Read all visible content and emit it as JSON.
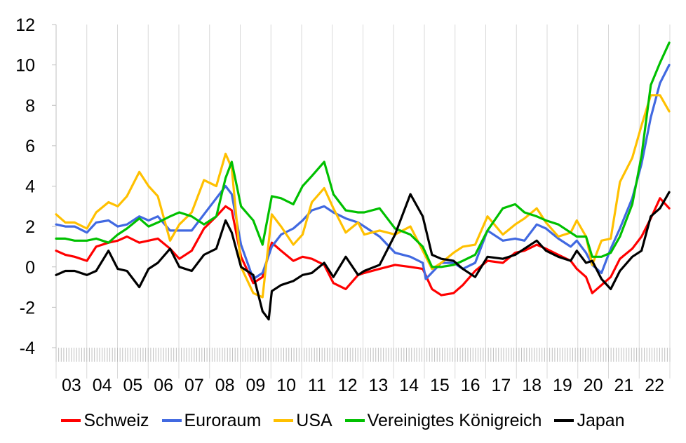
{
  "chart_data": {
    "type": "line",
    "title": "",
    "xlabel": "",
    "ylabel": "",
    "ylim": [
      -4,
      12
    ],
    "xlim": [
      2003.0,
      2022.92
    ],
    "yticks": [
      -4,
      -2,
      0,
      2,
      4,
      6,
      8,
      10,
      12
    ],
    "xtick_labels": [
      "03",
      "04",
      "05",
      "06",
      "07",
      "08",
      "09",
      "10",
      "11",
      "12",
      "13",
      "14",
      "15",
      "16",
      "17",
      "18",
      "19",
      "20",
      "21",
      "22"
    ],
    "grid": "vertical",
    "legend_position": "bottom",
    "series": [
      {
        "name": "Schweiz",
        "color": "#ff0000",
        "points": [
          [
            2003.0,
            0.8
          ],
          [
            2003.3,
            0.6
          ],
          [
            2003.6,
            0.5
          ],
          [
            2004.0,
            0.3
          ],
          [
            2004.3,
            1.0
          ],
          [
            2004.7,
            1.2
          ],
          [
            2005.0,
            1.3
          ],
          [
            2005.3,
            1.5
          ],
          [
            2005.7,
            1.2
          ],
          [
            2006.0,
            1.3
          ],
          [
            2006.3,
            1.4
          ],
          [
            2006.7,
            0.9
          ],
          [
            2007.0,
            0.4
          ],
          [
            2007.4,
            0.8
          ],
          [
            2007.8,
            1.9
          ],
          [
            2008.2,
            2.5
          ],
          [
            2008.5,
            3.0
          ],
          [
            2008.7,
            2.8
          ],
          [
            2009.0,
            0.5
          ],
          [
            2009.4,
            -0.8
          ],
          [
            2009.7,
            -0.5
          ],
          [
            2010.0,
            1.2
          ],
          [
            2010.3,
            0.8
          ],
          [
            2010.7,
            0.3
          ],
          [
            2011.0,
            0.5
          ],
          [
            2011.3,
            0.4
          ],
          [
            2011.7,
            0.1
          ],
          [
            2012.0,
            -0.8
          ],
          [
            2012.4,
            -1.1
          ],
          [
            2012.8,
            -0.4
          ],
          [
            2013.0,
            -0.3
          ],
          [
            2013.5,
            -0.1
          ],
          [
            2014.0,
            0.1
          ],
          [
            2014.5,
            0.0
          ],
          [
            2014.9,
            -0.1
          ],
          [
            2015.2,
            -1.1
          ],
          [
            2015.5,
            -1.4
          ],
          [
            2015.9,
            -1.3
          ],
          [
            2016.2,
            -0.9
          ],
          [
            2016.6,
            -0.2
          ],
          [
            2017.0,
            0.3
          ],
          [
            2017.5,
            0.2
          ],
          [
            2017.9,
            0.7
          ],
          [
            2018.2,
            0.8
          ],
          [
            2018.6,
            1.1
          ],
          [
            2018.9,
            0.9
          ],
          [
            2019.3,
            0.6
          ],
          [
            2019.7,
            0.3
          ],
          [
            2019.9,
            -0.1
          ],
          [
            2020.2,
            -0.5
          ],
          [
            2020.4,
            -1.3
          ],
          [
            2020.7,
            -0.9
          ],
          [
            2021.0,
            -0.5
          ],
          [
            2021.3,
            0.4
          ],
          [
            2021.7,
            0.9
          ],
          [
            2022.0,
            1.5
          ],
          [
            2022.3,
            2.4
          ],
          [
            2022.6,
            3.4
          ],
          [
            2022.9,
            2.9
          ]
        ]
      },
      {
        "name": "Euroraum",
        "color": "#4169e1",
        "points": [
          [
            2003.0,
            2.1
          ],
          [
            2003.3,
            2.0
          ],
          [
            2003.6,
            2.0
          ],
          [
            2004.0,
            1.7
          ],
          [
            2004.3,
            2.2
          ],
          [
            2004.7,
            2.3
          ],
          [
            2005.0,
            2.0
          ],
          [
            2005.3,
            2.1
          ],
          [
            2005.7,
            2.5
          ],
          [
            2006.0,
            2.3
          ],
          [
            2006.3,
            2.5
          ],
          [
            2006.7,
            1.8
          ],
          [
            2007.0,
            1.8
          ],
          [
            2007.4,
            1.8
          ],
          [
            2007.8,
            2.6
          ],
          [
            2008.2,
            3.4
          ],
          [
            2008.5,
            4.0
          ],
          [
            2008.7,
            3.6
          ],
          [
            2009.0,
            1.1
          ],
          [
            2009.4,
            -0.6
          ],
          [
            2009.7,
            -0.3
          ],
          [
            2010.0,
            1.0
          ],
          [
            2010.3,
            1.6
          ],
          [
            2010.7,
            1.9
          ],
          [
            2011.0,
            2.3
          ],
          [
            2011.3,
            2.8
          ],
          [
            2011.7,
            3.0
          ],
          [
            2012.0,
            2.7
          ],
          [
            2012.4,
            2.4
          ],
          [
            2012.8,
            2.2
          ],
          [
            2013.0,
            2.0
          ],
          [
            2013.5,
            1.5
          ],
          [
            2014.0,
            0.7
          ],
          [
            2014.5,
            0.5
          ],
          [
            2014.9,
            0.2
          ],
          [
            2015.0,
            -0.6
          ],
          [
            2015.5,
            0.2
          ],
          [
            2015.9,
            0.2
          ],
          [
            2016.2,
            -0.1
          ],
          [
            2016.6,
            0.2
          ],
          [
            2017.0,
            1.8
          ],
          [
            2017.5,
            1.3
          ],
          [
            2017.9,
            1.4
          ],
          [
            2018.2,
            1.3
          ],
          [
            2018.6,
            2.1
          ],
          [
            2018.9,
            1.9
          ],
          [
            2019.3,
            1.4
          ],
          [
            2019.7,
            1.0
          ],
          [
            2019.9,
            1.3
          ],
          [
            2020.2,
            0.7
          ],
          [
            2020.4,
            0.1
          ],
          [
            2020.7,
            -0.3
          ],
          [
            2021.0,
            0.9
          ],
          [
            2021.3,
            1.9
          ],
          [
            2021.7,
            3.4
          ],
          [
            2022.0,
            5.1
          ],
          [
            2022.3,
            7.4
          ],
          [
            2022.6,
            9.1
          ],
          [
            2022.9,
            10.0
          ]
        ]
      },
      {
        "name": "USA",
        "color": "#ffc000",
        "points": [
          [
            2003.0,
            2.6
          ],
          [
            2003.3,
            2.2
          ],
          [
            2003.6,
            2.2
          ],
          [
            2004.0,
            1.9
          ],
          [
            2004.3,
            2.7
          ],
          [
            2004.7,
            3.2
          ],
          [
            2005.0,
            3.0
          ],
          [
            2005.3,
            3.5
          ],
          [
            2005.7,
            4.7
          ],
          [
            2006.0,
            4.0
          ],
          [
            2006.3,
            3.5
          ],
          [
            2006.7,
            1.3
          ],
          [
            2007.0,
            2.1
          ],
          [
            2007.4,
            2.7
          ],
          [
            2007.8,
            4.3
          ],
          [
            2008.2,
            4.0
          ],
          [
            2008.5,
            5.6
          ],
          [
            2008.7,
            4.9
          ],
          [
            2009.0,
            0.0
          ],
          [
            2009.4,
            -1.3
          ],
          [
            2009.7,
            -1.5
          ],
          [
            2010.0,
            2.6
          ],
          [
            2010.3,
            2.0
          ],
          [
            2010.7,
            1.1
          ],
          [
            2011.0,
            1.6
          ],
          [
            2011.3,
            3.2
          ],
          [
            2011.7,
            3.9
          ],
          [
            2012.0,
            2.9
          ],
          [
            2012.4,
            1.7
          ],
          [
            2012.8,
            2.2
          ],
          [
            2013.0,
            1.6
          ],
          [
            2013.5,
            1.8
          ],
          [
            2014.0,
            1.6
          ],
          [
            2014.5,
            2.0
          ],
          [
            2014.9,
            0.8
          ],
          [
            2015.2,
            -0.1
          ],
          [
            2015.5,
            0.2
          ],
          [
            2015.9,
            0.7
          ],
          [
            2016.2,
            1.0
          ],
          [
            2016.6,
            1.1
          ],
          [
            2017.0,
            2.5
          ],
          [
            2017.5,
            1.6
          ],
          [
            2017.9,
            2.1
          ],
          [
            2018.2,
            2.4
          ],
          [
            2018.6,
            2.9
          ],
          [
            2018.9,
            2.2
          ],
          [
            2019.3,
            1.5
          ],
          [
            2019.7,
            1.7
          ],
          [
            2019.9,
            2.3
          ],
          [
            2020.2,
            1.5
          ],
          [
            2020.4,
            0.1
          ],
          [
            2020.7,
            1.3
          ],
          [
            2021.0,
            1.4
          ],
          [
            2021.3,
            4.2
          ],
          [
            2021.7,
            5.4
          ],
          [
            2022.0,
            7.0
          ],
          [
            2022.3,
            8.5
          ],
          [
            2022.6,
            8.5
          ],
          [
            2022.9,
            7.7
          ]
        ]
      },
      {
        "name": "Vereinigtes Königreich",
        "color": "#00c000",
        "points": [
          [
            2003.0,
            1.4
          ],
          [
            2003.3,
            1.4
          ],
          [
            2003.6,
            1.3
          ],
          [
            2004.0,
            1.3
          ],
          [
            2004.3,
            1.4
          ],
          [
            2004.7,
            1.2
          ],
          [
            2005.0,
            1.6
          ],
          [
            2005.3,
            1.9
          ],
          [
            2005.7,
            2.4
          ],
          [
            2006.0,
            2.0
          ],
          [
            2006.3,
            2.2
          ],
          [
            2006.7,
            2.5
          ],
          [
            2007.0,
            2.7
          ],
          [
            2007.4,
            2.5
          ],
          [
            2007.8,
            2.1
          ],
          [
            2008.2,
            2.5
          ],
          [
            2008.5,
            4.4
          ],
          [
            2008.7,
            5.2
          ],
          [
            2009.0,
            3.0
          ],
          [
            2009.4,
            2.3
          ],
          [
            2009.7,
            1.1
          ],
          [
            2010.0,
            3.5
          ],
          [
            2010.3,
            3.4
          ],
          [
            2010.7,
            3.1
          ],
          [
            2011.0,
            4.0
          ],
          [
            2011.3,
            4.5
          ],
          [
            2011.7,
            5.2
          ],
          [
            2012.0,
            3.6
          ],
          [
            2012.4,
            2.8
          ],
          [
            2012.8,
            2.7
          ],
          [
            2013.0,
            2.7
          ],
          [
            2013.5,
            2.9
          ],
          [
            2014.0,
            1.9
          ],
          [
            2014.5,
            1.6
          ],
          [
            2014.9,
            1.0
          ],
          [
            2015.2,
            0.0
          ],
          [
            2015.5,
            0.0
          ],
          [
            2015.9,
            0.1
          ],
          [
            2016.2,
            0.3
          ],
          [
            2016.6,
            0.6
          ],
          [
            2017.0,
            1.8
          ],
          [
            2017.5,
            2.9
          ],
          [
            2017.9,
            3.1
          ],
          [
            2018.2,
            2.7
          ],
          [
            2018.6,
            2.5
          ],
          [
            2018.9,
            2.3
          ],
          [
            2019.3,
            2.1
          ],
          [
            2019.7,
            1.7
          ],
          [
            2019.9,
            1.5
          ],
          [
            2020.2,
            1.5
          ],
          [
            2020.4,
            0.5
          ],
          [
            2020.7,
            0.5
          ],
          [
            2021.0,
            0.7
          ],
          [
            2021.3,
            1.5
          ],
          [
            2021.7,
            3.1
          ],
          [
            2022.0,
            5.5
          ],
          [
            2022.3,
            9.0
          ],
          [
            2022.6,
            10.1
          ],
          [
            2022.9,
            11.1
          ]
        ]
      },
      {
        "name": "Japan",
        "color": "#000000",
        "points": [
          [
            2003.0,
            -0.4
          ],
          [
            2003.3,
            -0.2
          ],
          [
            2003.6,
            -0.2
          ],
          [
            2004.0,
            -0.4
          ],
          [
            2004.3,
            -0.2
          ],
          [
            2004.7,
            0.8
          ],
          [
            2005.0,
            -0.1
          ],
          [
            2005.3,
            -0.2
          ],
          [
            2005.7,
            -1.0
          ],
          [
            2006.0,
            -0.1
          ],
          [
            2006.3,
            0.2
          ],
          [
            2006.7,
            0.9
          ],
          [
            2007.0,
            0.0
          ],
          [
            2007.4,
            -0.2
          ],
          [
            2007.8,
            0.6
          ],
          [
            2008.2,
            0.9
          ],
          [
            2008.5,
            2.3
          ],
          [
            2008.7,
            1.7
          ],
          [
            2009.0,
            0.0
          ],
          [
            2009.4,
            -0.4
          ],
          [
            2009.7,
            -2.2
          ],
          [
            2009.9,
            -2.6
          ],
          [
            2010.0,
            -1.2
          ],
          [
            2010.3,
            -0.9
          ],
          [
            2010.7,
            -0.7
          ],
          [
            2011.0,
            -0.4
          ],
          [
            2011.3,
            -0.3
          ],
          [
            2011.7,
            0.2
          ],
          [
            2012.0,
            -0.5
          ],
          [
            2012.4,
            0.5
          ],
          [
            2012.8,
            -0.4
          ],
          [
            2013.0,
            -0.2
          ],
          [
            2013.5,
            0.1
          ],
          [
            2014.0,
            1.6
          ],
          [
            2014.5,
            3.6
          ],
          [
            2014.9,
            2.5
          ],
          [
            2015.2,
            0.6
          ],
          [
            2015.5,
            0.4
          ],
          [
            2015.9,
            0.3
          ],
          [
            2016.2,
            -0.1
          ],
          [
            2016.6,
            -0.5
          ],
          [
            2017.0,
            0.5
          ],
          [
            2017.5,
            0.4
          ],
          [
            2017.9,
            0.6
          ],
          [
            2018.2,
            0.9
          ],
          [
            2018.6,
            1.3
          ],
          [
            2018.9,
            0.8
          ],
          [
            2019.3,
            0.5
          ],
          [
            2019.7,
            0.3
          ],
          [
            2019.9,
            0.8
          ],
          [
            2020.2,
            0.2
          ],
          [
            2020.4,
            0.3
          ],
          [
            2020.7,
            -0.6
          ],
          [
            2021.0,
            -1.1
          ],
          [
            2021.3,
            -0.2
          ],
          [
            2021.7,
            0.5
          ],
          [
            2022.0,
            0.8
          ],
          [
            2022.3,
            2.5
          ],
          [
            2022.6,
            2.9
          ],
          [
            2022.9,
            3.7
          ]
        ]
      }
    ]
  }
}
